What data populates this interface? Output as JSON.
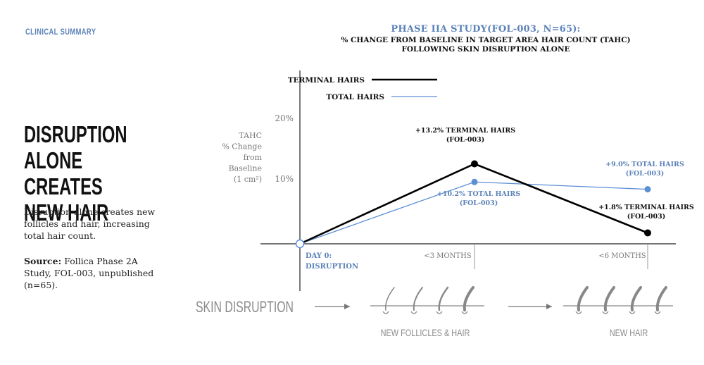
{
  "page": {
    "section_label": "CLINICAL SUMMARY",
    "headline_lines": [
      "DISRUPTION",
      "ALONE CREATES",
      "NEW HAIR"
    ],
    "body": "Disruption alone creates new follicles and hair, increasing total hair count.",
    "source_label": "Source:",
    "source_text": "Follica Phase 2A Study, FOL-003, unpublished (n=65)."
  },
  "chart_data": {
    "type": "line",
    "title": "PHASE IIA STUDY(FOL-003, N=65):",
    "subtitle_lines": [
      "% CHANGE FROM BASELINE IN TARGET AREA HAIR COUNT (TAHC)",
      "FOLLOWING SKIN DISRUPTION ALONE"
    ],
    "ylabel_lines": [
      "TAHC",
      "% Change",
      "from",
      "Baseline",
      "(1 cm²)"
    ],
    "ylim": [
      0,
      20
    ],
    "y_ticks": [
      {
        "value": 20,
        "label": "20%"
      },
      {
        "value": 10,
        "label": "10%"
      }
    ],
    "x_points": [
      "day0",
      "3m",
      "6m"
    ],
    "x_labels": [
      {
        "lines": [
          "DAY 0:",
          "DISRUPTION"
        ],
        "color": "#5b82b8"
      },
      {
        "lines": [
          "<3 MONTHS"
        ],
        "color": "#777777"
      },
      {
        "lines": [
          "<6 MONTHS"
        ],
        "color": "#777777"
      }
    ],
    "series": [
      {
        "name": "TERMINAL HAIRS",
        "color": "#000000",
        "values": [
          0,
          13.2,
          1.8
        ],
        "annotations": [
          null,
          {
            "lines": [
              "+13.2% TERMINAL HAIRS",
              "(FOL-003)"
            ]
          },
          {
            "lines": [
              "+1.8% TERMINAL HAIRS",
              "(FOL-003)"
            ]
          }
        ]
      },
      {
        "name": "TOTAL HAIRS",
        "color": "#5b8fd4",
        "values": [
          0,
          10.2,
          9.0
        ],
        "annotations": [
          null,
          {
            "lines": [
              "+10.2% TOTAL HAIRS",
              "(FOL-003)"
            ]
          },
          {
            "lines": [
              "+9.0% TOTAL HAIRS",
              "(FOL-003)"
            ]
          }
        ]
      }
    ],
    "legend_placement": "top-left"
  },
  "flow": {
    "step1": "SKIN DISRUPTION",
    "step2": "NEW FOLLICLES & HAIR",
    "step3": "NEW HAIR"
  },
  "colors": {
    "accent": "#5b82b8",
    "terminal": "#000000",
    "total": "#5b8fd4",
    "muted": "#8a8a8a"
  }
}
